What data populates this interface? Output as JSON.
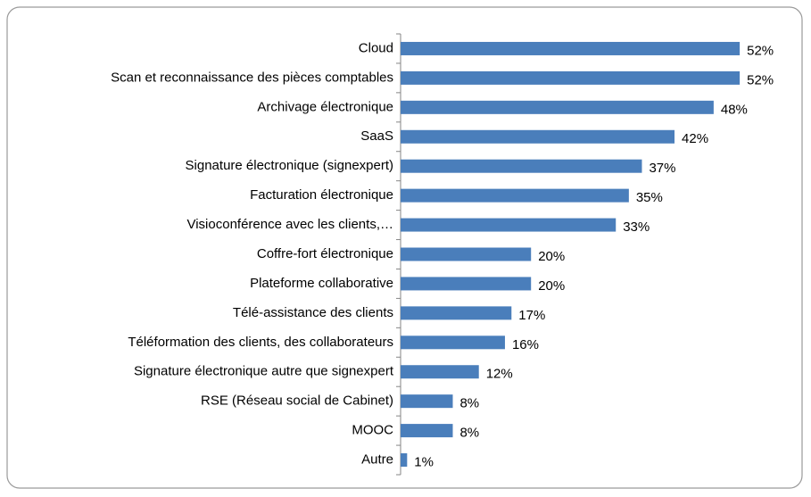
{
  "chart_data": {
    "type": "bar",
    "orientation": "horizontal",
    "color": "#4a7ebb",
    "categories": [
      "Cloud",
      "Scan et reconnaissance des pièces comptables",
      "Archivage électronique",
      "SaaS",
      "Signature électronique (signexpert)",
      "Facturation électronique",
      "Visioconférence avec les clients,…",
      "Coffre-fort électronique",
      "Plateforme collaborative",
      "Télé-assistance des clients",
      "Téléformation des clients, des collaborateurs",
      "Signature électronique autre que signexpert",
      "RSE (Réseau social de Cabinet)",
      "MOOC",
      "Autre"
    ],
    "values": [
      52,
      52,
      48,
      42,
      37,
      35,
      33,
      20,
      20,
      17,
      16,
      12,
      8,
      8,
      1
    ],
    "value_labels": [
      "52%",
      "52%",
      "48%",
      "42%",
      "37%",
      "35%",
      "33%",
      "20%",
      "20%",
      "17%",
      "16%",
      "12%",
      "8%",
      "8%",
      "1%"
    ]
  }
}
